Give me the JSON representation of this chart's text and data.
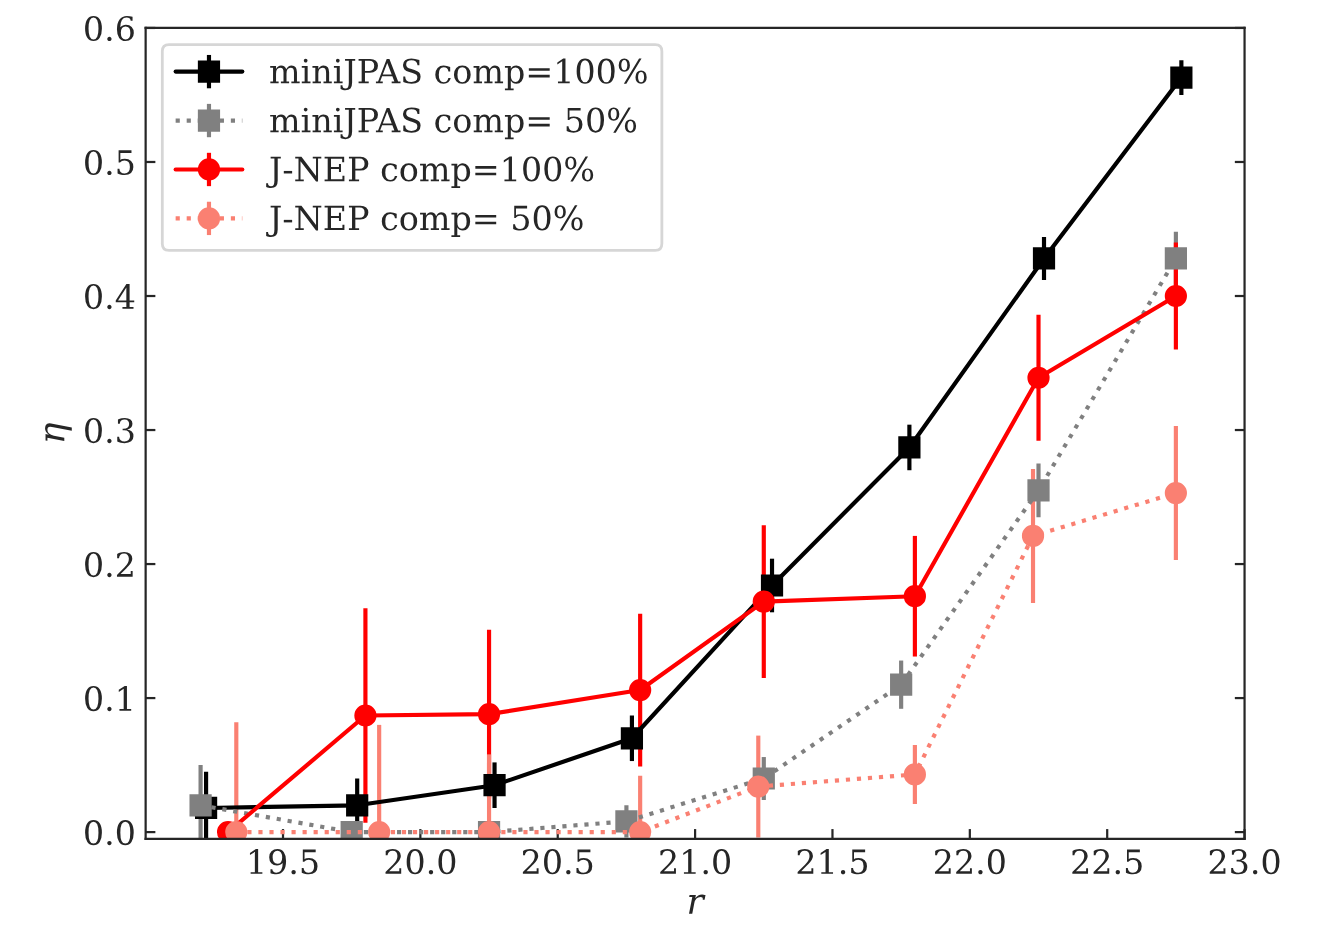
{
  "chart_data": {
    "type": "line",
    "xlabel": "r",
    "ylabel": "η",
    "xlim": [
      19.0,
      23.0
    ],
    "ylim": [
      -0.005,
      0.6
    ],
    "xticks": [
      19.5,
      {
        "value": 20,
        "label": "20.0"
      },
      20.5,
      {
        "value": 21,
        "label": "21.0"
      },
      21.5,
      {
        "value": 22,
        "label": "22.0"
      },
      22.5,
      {
        "value": 23,
        "label": "23.0"
      }
    ],
    "yticks": [
      {
        "value": 0,
        "label": "0.0"
      },
      0.1,
      0.2,
      0.3,
      0.4,
      0.5,
      0.6
    ],
    "legend": "top left",
    "grid": false,
    "series": [
      {
        "name": "miniJPAS comp=100%",
        "color": "#000000",
        "marker": "square",
        "line_style": "solid",
        "x": [
          19.22,
          19.77,
          20.27,
          20.77,
          21.28,
          21.78,
          22.27,
          22.77
        ],
        "values": [
          0.018,
          0.02,
          0.035,
          0.07,
          0.184,
          0.287,
          0.428,
          0.563
        ],
        "errors": [
          0.027,
          0.02,
          0.017,
          0.017,
          0.02,
          0.017,
          0.016,
          0.013
        ]
      },
      {
        "name": "miniJPAS comp= 50%",
        "color": "#808080",
        "marker": "square",
        "line_style": "dotted",
        "x": [
          19.2,
          19.75,
          20.25,
          20.75,
          21.25,
          21.75,
          22.25,
          22.75
        ],
        "values": [
          0.02,
          0.0,
          0.0,
          0.008,
          0.04,
          0.11,
          0.255,
          0.428
        ],
        "errors": [
          0.03,
          0.0,
          0.0,
          0.012,
          0.016,
          0.018,
          0.02,
          0.02
        ]
      },
      {
        "name": "J-NEP comp=100%",
        "color": "#ff0000",
        "marker": "circle",
        "line_style": "solid",
        "x": [
          19.3,
          19.8,
          20.25,
          20.8,
          21.25,
          21.8,
          22.25,
          22.75
        ],
        "values": [
          0.0,
          0.087,
          0.088,
          0.106,
          0.172,
          0.176,
          0.339,
          0.4
        ],
        "errors": [
          0.0,
          0.08,
          0.063,
          0.057,
          0.057,
          0.045,
          0.047,
          0.04
        ]
      },
      {
        "name": "J-NEP comp= 50%",
        "color": "#fa8072",
        "marker": "circle",
        "line_style": "dotted",
        "x": [
          19.33,
          19.85,
          20.25,
          20.8,
          21.23,
          21.8,
          22.23,
          22.75
        ],
        "values": [
          0.0,
          0.0,
          0.0,
          0.0,
          0.034,
          0.043,
          0.221,
          0.253
        ],
        "errors": [
          [
            0.0,
            0.082
          ],
          [
            0.0,
            0.08
          ],
          [
            0.0,
            0.058
          ],
          [
            0.0,
            0.042
          ],
          0.038,
          0.022,
          0.05,
          0.05
        ]
      }
    ]
  }
}
